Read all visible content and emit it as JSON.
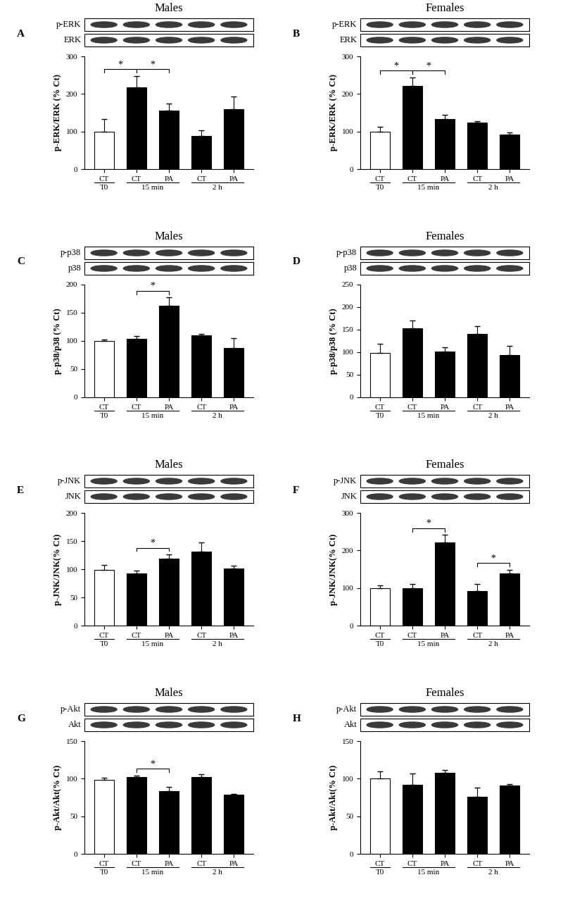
{
  "chart_data": [
    {
      "type": "bar",
      "panel": "A",
      "title": "Males",
      "blots": [
        "p-ERK",
        "ERK"
      ],
      "ylabel": "p-ERK/ERK (% Ct)",
      "categories": [
        "CT",
        "CT",
        "PA",
        "CT",
        "PA"
      ],
      "groups": [
        "T0",
        "15 min",
        "15 min",
        "2 h",
        "2 h"
      ],
      "values": [
        100,
        218,
        155,
        88,
        160
      ],
      "errors": [
        33,
        30,
        20,
        15,
        33
      ],
      "colors": [
        "#ffffff",
        "#000000",
        "#000000",
        "#000000",
        "#000000"
      ],
      "ylim": [
        0,
        300
      ],
      "yticks": [
        0,
        100,
        200,
        300
      ],
      "significance": [
        {
          "pair": [
            0,
            1
          ],
          "label": "*"
        },
        {
          "pair": [
            1,
            2
          ],
          "label": "*"
        }
      ]
    },
    {
      "type": "bar",
      "panel": "B",
      "title": "Females",
      "blots": [
        "p-ERK",
        "ERK"
      ],
      "ylabel": "p-ERK/ERK (% Ct)",
      "categories": [
        "CT",
        "CT",
        "PA",
        "CT",
        "PA"
      ],
      "groups": [
        "T0",
        "15 min",
        "15 min",
        "2 h",
        "2 h"
      ],
      "values": [
        100,
        222,
        133,
        123,
        91
      ],
      "errors": [
        12,
        22,
        12,
        4,
        6
      ],
      "colors": [
        "#ffffff",
        "#000000",
        "#000000",
        "#000000",
        "#000000"
      ],
      "ylim": [
        0,
        300
      ],
      "yticks": [
        0,
        100,
        200,
        300
      ],
      "significance": [
        {
          "pair": [
            0,
            1
          ],
          "label": "*"
        },
        {
          "pair": [
            1,
            2
          ],
          "label": "*"
        }
      ]
    },
    {
      "type": "bar",
      "panel": "C",
      "title": "Males",
      "blots": [
        "p-p38",
        "p38"
      ],
      "ylabel": "p-p38/p38 (% Ct)",
      "categories": [
        "CT",
        "CT",
        "PA",
        "CT",
        "PA"
      ],
      "groups": [
        "T0",
        "15 min",
        "15 min",
        "2 h",
        "2 h"
      ],
      "values": [
        100,
        104,
        162,
        110,
        88
      ],
      "errors": [
        2,
        5,
        15,
        3,
        17
      ],
      "colors": [
        "#ffffff",
        "#000000",
        "#000000",
        "#000000",
        "#000000"
      ],
      "ylim": [
        0,
        200
      ],
      "yticks": [
        0,
        50,
        100,
        150,
        200
      ],
      "significance": [
        {
          "pair": [
            1,
            2
          ],
          "label": "*"
        }
      ]
    },
    {
      "type": "bar",
      "panel": "D",
      "title": "Females",
      "blots": [
        "p-p38",
        "p38"
      ],
      "ylabel": "p-p38/p38 (% Ct)",
      "categories": [
        "CT",
        "CT",
        "PA",
        "CT",
        "PA"
      ],
      "groups": [
        "T0",
        "15 min",
        "15 min",
        "2 h",
        "2 h"
      ],
      "values": [
        98,
        153,
        101,
        141,
        94
      ],
      "errors": [
        20,
        18,
        10,
        17,
        20
      ],
      "colors": [
        "#ffffff",
        "#000000",
        "#000000",
        "#000000",
        "#000000"
      ],
      "ylim": [
        0,
        250
      ],
      "yticks": [
        0,
        50,
        100,
        150,
        200,
        250
      ],
      "significance": []
    },
    {
      "type": "bar",
      "panel": "E",
      "title": "Males",
      "blots": [
        "p-JNK",
        "JNK"
      ],
      "ylabel": "p-JNK/JNK(% Ct)",
      "categories": [
        "CT",
        "CT",
        "PA",
        "CT",
        "PA"
      ],
      "groups": [
        "T0",
        "15 min",
        "15 min",
        "2 h",
        "2 h"
      ],
      "values": [
        99,
        92,
        119,
        131,
        101
      ],
      "errors": [
        9,
        6,
        7,
        17,
        5
      ],
      "colors": [
        "#ffffff",
        "#000000",
        "#000000",
        "#000000",
        "#000000"
      ],
      "ylim": [
        0,
        200
      ],
      "yticks": [
        0,
        50,
        100,
        150,
        200
      ],
      "significance": [
        {
          "pair": [
            1,
            2
          ],
          "label": "*"
        }
      ]
    },
    {
      "type": "bar",
      "panel": "F",
      "title": "Females",
      "blots": [
        "p-JNK",
        "JNK"
      ],
      "ylabel": "p-JNK/JNK(% Ct)",
      "categories": [
        "CT",
        "CT",
        "PA",
        "CT",
        "PA"
      ],
      "groups": [
        "T0",
        "15 min",
        "15 min",
        "2 h",
        "2 h"
      ],
      "values": [
        100,
        100,
        221,
        92,
        138
      ],
      "errors": [
        7,
        10,
        20,
        18,
        10
      ],
      "colors": [
        "#ffffff",
        "#000000",
        "#000000",
        "#000000",
        "#000000"
      ],
      "ylim": [
        0,
        300
      ],
      "yticks": [
        0,
        100,
        200,
        300
      ],
      "significance": [
        {
          "pair": [
            1,
            2
          ],
          "label": "*"
        },
        {
          "pair": [
            3,
            4
          ],
          "label": "*"
        }
      ]
    },
    {
      "type": "bar",
      "panel": "G",
      "title": "Males",
      "blots": [
        "p-Akt",
        "Akt"
      ],
      "ylabel": "p-Akt/Akt(% Ct)",
      "categories": [
        "CT",
        "CT",
        "PA",
        "CT",
        "PA"
      ],
      "groups": [
        "T0",
        "15 min",
        "15 min",
        "2 h",
        "2 h"
      ],
      "values": [
        98,
        102,
        83,
        102,
        79
      ],
      "errors": [
        3,
        2,
        6,
        4,
        1
      ],
      "colors": [
        "#ffffff",
        "#000000",
        "#000000",
        "#000000",
        "#000000"
      ],
      "ylim": [
        0,
        150
      ],
      "yticks": [
        0,
        50,
        100,
        150
      ],
      "significance": [
        {
          "pair": [
            1,
            2
          ],
          "label": "*"
        }
      ]
    },
    {
      "type": "bar",
      "panel": "H",
      "title": "Females",
      "blots": [
        "p-Akt",
        "Akt"
      ],
      "ylabel": "p-Akt/Akt(% Ct)",
      "categories": [
        "CT",
        "CT",
        "PA",
        "CT",
        "PA"
      ],
      "groups": [
        "T0",
        "15 min",
        "15 min",
        "2 h",
        "2 h"
      ],
      "values": [
        100,
        92,
        108,
        76,
        91
      ],
      "errors": [
        10,
        15,
        4,
        12,
        2
      ],
      "colors": [
        "#ffffff",
        "#000000",
        "#000000",
        "#000000",
        "#000000"
      ],
      "ylim": [
        0,
        150
      ],
      "yticks": [
        0,
        50,
        100,
        150
      ],
      "significance": []
    }
  ]
}
